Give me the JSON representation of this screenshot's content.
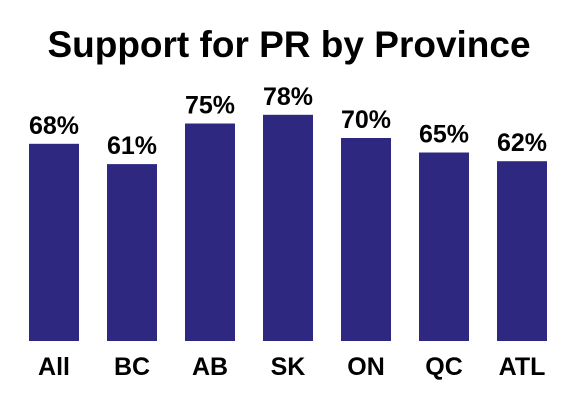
{
  "chart_data": {
    "type": "bar",
    "title": "Support for PR by Province",
    "xlabel": "",
    "ylabel": "",
    "categories": [
      "All",
      "BC",
      "AB",
      "SK",
      "ON",
      "QC",
      "ATL"
    ],
    "values": [
      68,
      61,
      75,
      78,
      70,
      65,
      62
    ],
    "value_labels": [
      "68%",
      "61%",
      "75%",
      "78%",
      "70%",
      "65%",
      "62%"
    ],
    "ylim": [
      0,
      100
    ],
    "bar_color": "#2e2880",
    "grid": false,
    "legend": "none"
  }
}
